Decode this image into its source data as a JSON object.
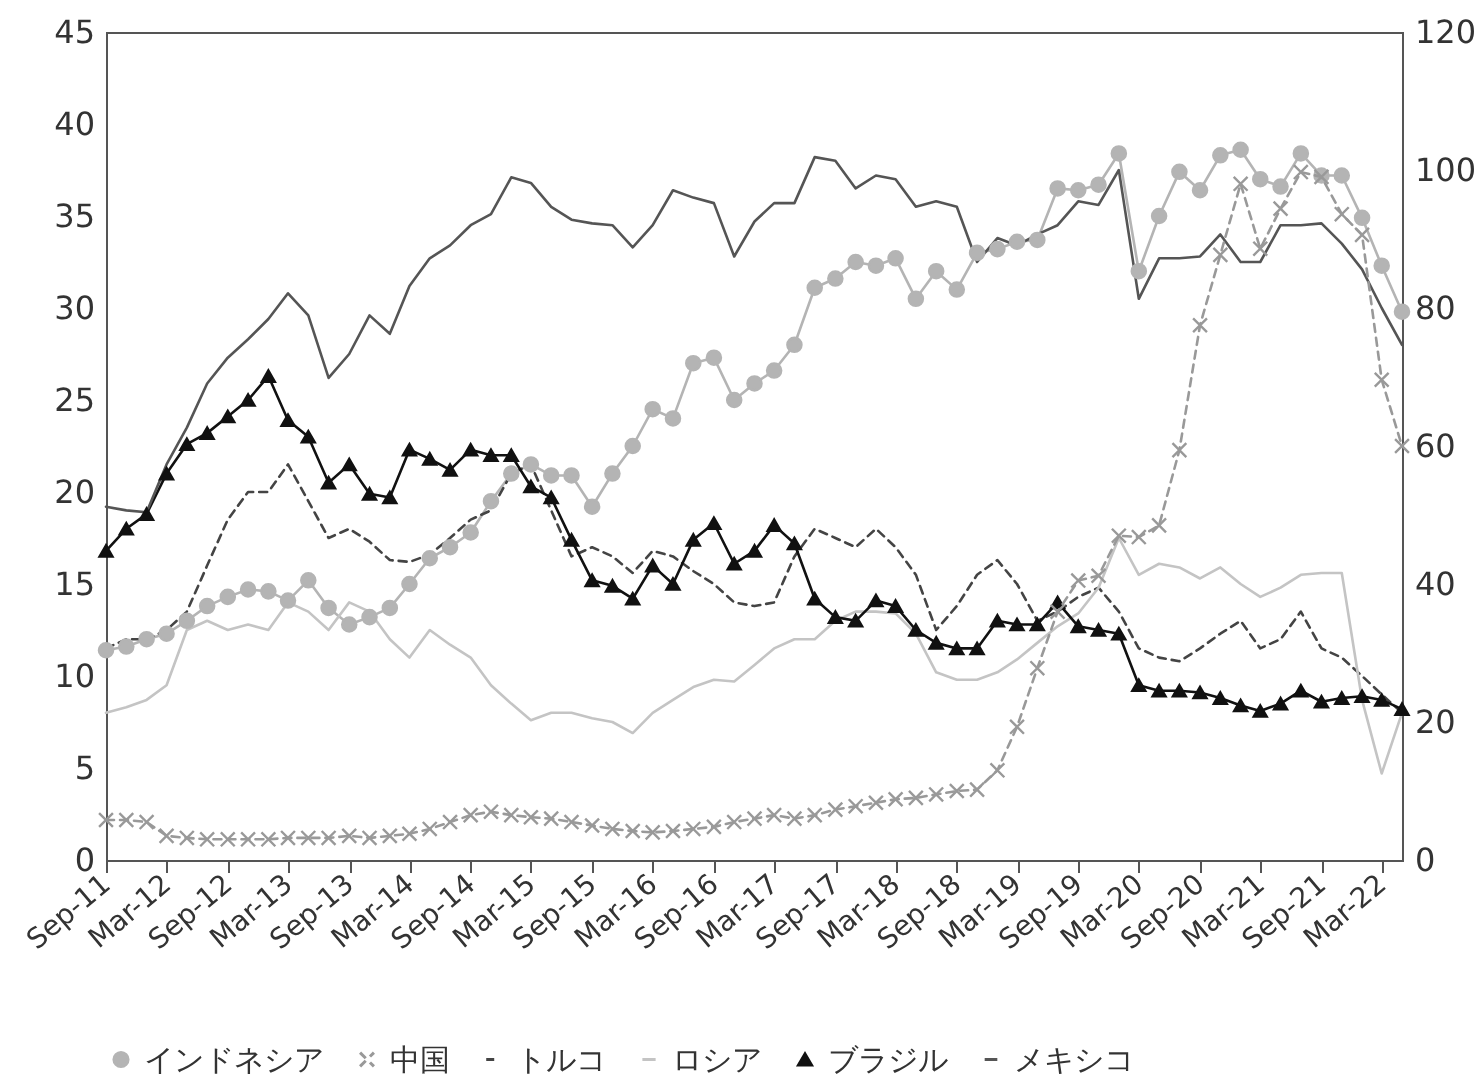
{
  "chart_data": {
    "type": "line",
    "x": [
      "2011-09",
      "2011-11",
      "2012-01",
      "2012-03",
      "2012-05",
      "2012-07",
      "2012-09",
      "2012-11",
      "2013-01",
      "2013-03",
      "2013-05",
      "2013-07",
      "2013-09",
      "2013-11",
      "2014-01",
      "2014-03",
      "2014-05",
      "2014-07",
      "2014-09",
      "2014-11",
      "2015-01",
      "2015-03",
      "2015-05",
      "2015-07",
      "2015-09",
      "2015-11",
      "2016-01",
      "2016-03",
      "2016-05",
      "2016-07",
      "2016-09",
      "2016-11",
      "2017-01",
      "2017-03",
      "2017-05",
      "2017-07",
      "2017-09",
      "2017-11",
      "2018-01",
      "2018-03",
      "2018-05",
      "2018-07",
      "2018-09",
      "2018-11",
      "2019-01",
      "2019-03",
      "2019-05",
      "2019-07",
      "2019-09",
      "2019-11",
      "2020-01",
      "2020-03",
      "2020-05",
      "2020-07",
      "2020-09",
      "2020-11",
      "2021-01",
      "2021-03",
      "2021-05",
      "2021-07",
      "2021-09",
      "2021-11",
      "2022-01",
      "2022-03",
      "2022-05"
    ],
    "series": [
      {
        "name": "インドネシア",
        "color": "#b4b4b4",
        "marker": "circle",
        "line_style": "solid",
        "values": [
          11.4,
          11.6,
          12,
          12.3,
          13,
          13.8,
          14.3,
          14.7,
          14.6,
          14.1,
          15.2,
          13.7,
          12.8,
          13.2,
          13.7,
          15,
          16.4,
          17,
          17.8,
          19.5,
          21,
          21.5,
          20.9,
          20.9,
          19.2,
          21,
          22.5,
          24.5,
          24,
          27,
          27.3,
          25,
          25.9,
          26.6,
          28,
          31.1,
          31.6,
          32.5,
          32.3,
          32.7,
          30.5,
          32,
          31,
          33,
          33.2,
          33.6,
          33.7,
          36.5,
          36.4,
          36.7,
          38.4,
          32,
          35,
          37.4,
          36.4,
          38.3,
          38.6,
          37,
          36.6,
          38.4,
          37.2,
          37.2,
          34.9,
          32.3,
          29.8
        ]
      },
      {
        "name": "中国",
        "color": "#999999",
        "marker": "cross",
        "line_style": "dashed",
        "axis": "y2",
        "values": [
          5.8,
          5.8,
          5.5,
          3.5,
          3.2,
          3,
          3,
          3,
          3,
          3.2,
          3.2,
          3.2,
          3.5,
          3.2,
          3.5,
          3.8,
          4.5,
          5.5,
          6.5,
          7,
          6.5,
          6.2,
          6,
          5.5,
          5,
          4.5,
          4.2,
          4,
          4.2,
          4.5,
          4.8,
          5.5,
          6,
          6.5,
          6,
          6.5,
          7.3,
          7.8,
          8.3,
          8.8,
          9,
          9.5,
          10,
          10.2,
          13,
          19.3,
          27.8,
          36,
          40.5,
          41.2,
          47,
          46.8,
          48.5,
          59.4,
          77.5,
          87.7,
          98,
          88.6,
          94.4,
          99.7,
          99,
          93.6,
          90.6,
          69.6,
          60
        ]
      },
      {
        "name": "トルコ",
        "color": "#444444",
        "marker": "none",
        "line_style": "dashed",
        "values": [
          11.5,
          12,
          12,
          12.5,
          13.5,
          16,
          18.5,
          20,
          20,
          21.5,
          19.5,
          17.5,
          18,
          17.3,
          16.3,
          16.2,
          16.6,
          17.5,
          18.5,
          19,
          21,
          21.5,
          19,
          16.5,
          17,
          16.5,
          15.6,
          16.8,
          16.5,
          15.7,
          15,
          14,
          13.8,
          14,
          16.5,
          18,
          17.5,
          17,
          18,
          17,
          15.5,
          12.5,
          13.8,
          15.5,
          16.3,
          15,
          13,
          13.5,
          14.3,
          14.8,
          13.5,
          11.5,
          11,
          10.8,
          11.5,
          12.3,
          13,
          11.5,
          12,
          13.5,
          11.5,
          11,
          10,
          9,
          8
        ]
      },
      {
        "name": "ロシア",
        "color": "#c4c4c4",
        "marker": "none",
        "line_style": "solid",
        "values": [
          8,
          8.3,
          8.7,
          9.5,
          12.5,
          13,
          12.5,
          12.8,
          12.5,
          14,
          13.5,
          12.5,
          14,
          13.5,
          12,
          11,
          12.5,
          11.7,
          11,
          9.5,
          8.5,
          7.6,
          8,
          8,
          7.7,
          7.5,
          6.9,
          8,
          8.7,
          9.4,
          9.8,
          9.7,
          10.6,
          11.5,
          12,
          12,
          13,
          13.5,
          13.5,
          13.4,
          12.3,
          10.2,
          9.8,
          9.8,
          10.2,
          10.9,
          11.8,
          12.7,
          13.4,
          14.8,
          17.5,
          15.5,
          16.1,
          15.9,
          15.3,
          15.9,
          15,
          14.3,
          14.8,
          15.5,
          15.6,
          15.6,
          8.7,
          4.7,
          8
        ]
      },
      {
        "name": "ブラジル",
        "color": "#111111",
        "marker": "triangle",
        "line_style": "solid",
        "values": [
          16.8,
          18,
          18.8,
          21,
          22.6,
          23.2,
          24.1,
          25,
          26.3,
          23.9,
          23,
          20.5,
          21.5,
          19.9,
          19.7,
          22.3,
          21.8,
          21.2,
          22.3,
          22,
          22,
          20.3,
          19.7,
          17.4,
          15.2,
          14.9,
          14.2,
          16,
          15,
          17.4,
          18.3,
          16.1,
          16.8,
          18.2,
          17.2,
          14.2,
          13.2,
          13,
          14.1,
          13.8,
          12.5,
          11.8,
          11.5,
          11.5,
          13,
          12.8,
          12.8,
          14,
          12.7,
          12.5,
          12.3,
          9.5,
          9.2,
          9.2,
          9.1,
          8.8,
          8.4,
          8.1,
          8.5,
          9.2,
          8.6,
          8.8,
          8.9,
          8.7,
          8.2
        ]
      },
      {
        "name": "メキシコ",
        "color": "#555555",
        "marker": "none",
        "line_style": "solid",
        "values": [
          19.2,
          19,
          18.9,
          21.5,
          23.5,
          25.9,
          27.3,
          28.3,
          29.4,
          30.8,
          29.6,
          26.2,
          27.5,
          29.6,
          28.6,
          31.2,
          32.7,
          33.4,
          34.5,
          35.1,
          37.1,
          36.8,
          35.5,
          34.8,
          34.6,
          34.5,
          33.3,
          34.5,
          36.4,
          36,
          35.7,
          32.8,
          34.7,
          35.7,
          35.7,
          38.2,
          38,
          36.5,
          37.2,
          37,
          35.5,
          35.8,
          35.5,
          32.5,
          33.8,
          33.4,
          34,
          34.5,
          35.8,
          35.6,
          37.5,
          30.5,
          32.7,
          32.7,
          32.8,
          34,
          32.5,
          32.5,
          34.5,
          34.5,
          34.6,
          33.5,
          32.1,
          30,
          28
        ]
      }
    ],
    "xlim": [
      "2011-09",
      "2022-05"
    ],
    "xticks": [
      {
        "value": "2011-09",
        "label": "Sep-11"
      },
      {
        "value": "2012-03",
        "label": "Mar-12"
      },
      {
        "value": "2012-09",
        "label": "Sep-12"
      },
      {
        "value": "2013-03",
        "label": "Mar-13"
      },
      {
        "value": "2013-09",
        "label": "Sep-13"
      },
      {
        "value": "2014-03",
        "label": "Mar-14"
      },
      {
        "value": "2014-09",
        "label": "Sep-14"
      },
      {
        "value": "2015-03",
        "label": "Mar-15"
      },
      {
        "value": "2015-09",
        "label": "Sep-15"
      },
      {
        "value": "2016-03",
        "label": "Mar-16"
      },
      {
        "value": "2016-09",
        "label": "Sep-16"
      },
      {
        "value": "2017-03",
        "label": "Mar-17"
      },
      {
        "value": "2017-09",
        "label": "Sep-17"
      },
      {
        "value": "2018-03",
        "label": "Mar-18"
      },
      {
        "value": "2018-09",
        "label": "Sep-18"
      },
      {
        "value": "2019-03",
        "label": "Mar-19"
      },
      {
        "value": "2019-09",
        "label": "Sep-19"
      },
      {
        "value": "2020-03",
        "label": "Mar-20"
      },
      {
        "value": "2020-09",
        "label": "Sep-20"
      },
      {
        "value": "2021-03",
        "label": "Mar-21"
      },
      {
        "value": "2021-09",
        "label": "Sep-21"
      },
      {
        "value": "2022-03",
        "label": "Mar-22"
      }
    ],
    "ylim": [
      0,
      45
    ],
    "yticks": [
      0,
      5,
      10,
      15,
      20,
      25,
      30,
      35,
      40,
      45
    ],
    "y2lim": [
      0,
      120
    ],
    "y2ticks": [
      0,
      20,
      40,
      60,
      80,
      100,
      120
    ],
    "grid": false,
    "legend": "bottom"
  }
}
